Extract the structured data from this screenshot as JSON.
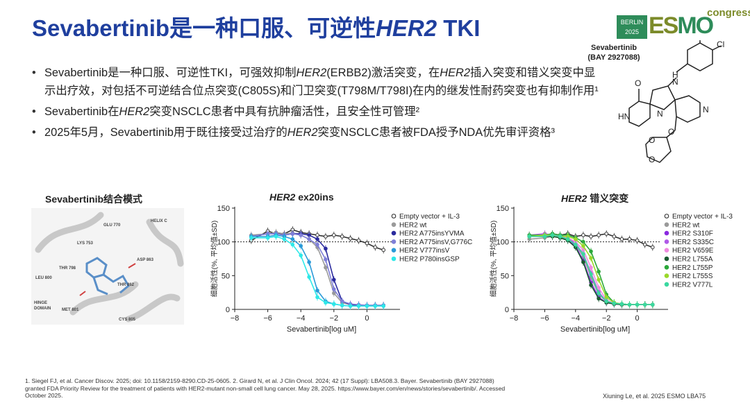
{
  "title": {
    "part1": "Sevabertinib是一种口服、可逆性",
    "her2": "HER2",
    "part2": " TKI"
  },
  "logo": {
    "city": "BERLIN",
    "year": "2025",
    "esmo_e": "ES",
    "esmo_mo": "MO",
    "congress": "congress"
  },
  "molecule": {
    "name": "Sevabertinib",
    "code": "(BAY 2927088)"
  },
  "bullets": [
    {
      "t1": "Sevabertinib是一种口服、可逆性TKI，可强效抑制",
      "i1": "HER2",
      "t2": "(ERBB2)激活突变，在",
      "i2": "HER2",
      "t3": "插入突变和错义突变中显示出疗效，对包括不可逆结合位点突变(C805S)和门卫突变(T798M/T798I)在内的继发性耐药突变也有抑制作用¹"
    },
    {
      "t1": "Sevabertinib在",
      "i1": "HER2",
      "t2": "突变NSCLC患者中具有抗肿瘤活性，且安全性可管理²"
    },
    {
      "t1": "2025年5月，Sevabertinib用于既往接受过治疗的",
      "i1": "HER2",
      "t2": "突变NSCLC患者被FDA授予NDA优先审评资格³"
    }
  ],
  "binding": {
    "title": "Sevabertinib结合模式",
    "labels": [
      "HELIX C",
      "GLU 770",
      "LYS 753",
      "ASP 863",
      "THR 798",
      "LEU 800",
      "THR 862",
      "HINGE",
      "DOMAIN",
      "MET 801",
      "CYS 805"
    ]
  },
  "chart_data": [
    {
      "type": "line",
      "title_italic": "HER2",
      "title_rest": " ex20ins",
      "xlabel": "Sevabertinib[log uM]",
      "ylabel": "细胞活性(%, 平均值±SD)",
      "xlim": [
        -8,
        2
      ],
      "ylim": [
        0,
        150
      ],
      "xticks": [
        -8,
        -6,
        -4,
        -2,
        0
      ],
      "yticks": [
        0,
        50,
        100,
        150
      ],
      "reference_line": 100,
      "legend_position": "right",
      "x": [
        -7,
        -6,
        -5.5,
        -5,
        -4.5,
        -4,
        -3.5,
        -3,
        -2.5,
        -2,
        -1.5,
        -1,
        -0.5,
        0,
        0.5,
        1
      ],
      "series": [
        {
          "name": "Empty vector + IL-3",
          "color": "#333333",
          "marker": "open",
          "values": [
            102,
            116,
            112,
            112,
            118,
            114,
            112,
            110,
            108,
            110,
            108,
            105,
            102,
            98,
            92,
            88
          ]
        },
        {
          "name": "HER2 wt",
          "color": "#9a9a9a",
          "marker": "filled",
          "values": [
            110,
            112,
            114,
            112,
            113,
            110,
            104,
            92,
            62,
            24,
            10,
            7,
            6,
            6,
            6,
            6
          ]
        },
        {
          "name": "HER2 A775insYVMA",
          "color": "#2b2b9e",
          "marker": "filled",
          "values": [
            108,
            112,
            112,
            110,
            112,
            112,
            110,
            104,
            90,
            44,
            12,
            7,
            6,
            6,
            6,
            6
          ]
        },
        {
          "name": "HER2 A775insV,G776C",
          "color": "#7f7fd8",
          "marker": "filled",
          "values": [
            108,
            112,
            112,
            110,
            112,
            110,
            104,
            96,
            74,
            30,
            12,
            8,
            7,
            6,
            6,
            6
          ]
        },
        {
          "name": "HER2 V777insV",
          "color": "#2a9ad8",
          "marker": "filled",
          "values": [
            108,
            108,
            110,
            108,
            104,
            94,
            70,
            28,
            12,
            8,
            6,
            5,
            5,
            5,
            5,
            5
          ]
        },
        {
          "name": "HER2 P780insGSP",
          "color": "#2ee8e8",
          "marker": "filled",
          "values": [
            106,
            106,
            108,
            104,
            96,
            80,
            48,
            18,
            10,
            8,
            6,
            5,
            5,
            5,
            5,
            5
          ]
        }
      ]
    },
    {
      "type": "line",
      "title_italic": "HER2",
      "title_rest": " 错义突变",
      "xlabel": "Sevabertinib[log uM]",
      "ylabel": "细胞活性(%, 平均值±SD)",
      "xlim": [
        -8,
        2
      ],
      "ylim": [
        0,
        150
      ],
      "xticks": [
        -8,
        -6,
        -4,
        -2,
        0
      ],
      "yticks": [
        0,
        50,
        100,
        150
      ],
      "reference_line": 100,
      "legend_position": "right",
      "x": [
        -7,
        -6,
        -5.5,
        -5,
        -4.5,
        -4,
        -3.5,
        -3,
        -2.5,
        -2,
        -1.5,
        -1,
        -0.5,
        0,
        0.5,
        1
      ],
      "series": [
        {
          "name": "Empty vector + IL-3",
          "color": "#333333",
          "marker": "open",
          "values": [
            108,
            110,
            112,
            110,
            112,
            108,
            110,
            108,
            110,
            112,
            108,
            104,
            104,
            102,
            96,
            92
          ]
        },
        {
          "name": "HER2 wt",
          "color": "#9a9a9a",
          "marker": "filled",
          "values": [
            104,
            106,
            108,
            106,
            104,
            96,
            78,
            48,
            22,
            12,
            8,
            7,
            7,
            7,
            7,
            7
          ]
        },
        {
          "name": "HER2 S310F",
          "color": "#8a2ae0",
          "marker": "filled",
          "values": [
            108,
            110,
            110,
            108,
            104,
            94,
            72,
            40,
            18,
            10,
            8,
            7,
            7,
            7,
            7,
            7
          ]
        },
        {
          "name": "HER2 S335C",
          "color": "#b05ae8",
          "marker": "filled",
          "values": [
            110,
            112,
            110,
            110,
            106,
            98,
            82,
            54,
            26,
            12,
            9,
            8,
            7,
            7,
            7,
            7
          ]
        },
        {
          "name": "HER2 V659E",
          "color": "#f08ae0",
          "marker": "filled",
          "values": [
            110,
            110,
            112,
            108,
            106,
            100,
            88,
            62,
            32,
            14,
            9,
            8,
            7,
            7,
            7,
            7
          ]
        },
        {
          "name": "HER2 L755A",
          "color": "#1a5a30",
          "marker": "filled",
          "values": [
            108,
            108,
            108,
            106,
            102,
            92,
            70,
            36,
            16,
            10,
            8,
            7,
            7,
            7,
            7,
            7
          ]
        },
        {
          "name": "HER2 L755P",
          "color": "#2aa83a",
          "marker": "filled",
          "values": [
            110,
            110,
            112,
            110,
            110,
            106,
            100,
            86,
            56,
            22,
            10,
            8,
            7,
            7,
            7,
            7
          ]
        },
        {
          "name": "HER2 L755S",
          "color": "#9ad82a",
          "marker": "filled",
          "values": [
            108,
            110,
            110,
            108,
            108,
            104,
            94,
            76,
            44,
            18,
            10,
            8,
            7,
            7,
            7,
            7
          ]
        },
        {
          "name": "HER2 V777L",
          "color": "#3ad8a0",
          "marker": "filled",
          "values": [
            108,
            108,
            110,
            108,
            104,
            96,
            82,
            52,
            24,
            12,
            9,
            8,
            7,
            7,
            7,
            7
          ]
        }
      ]
    }
  ],
  "footnote": "1. Siegel FJ, et al. Cancer Discov. 2025; doi: 10.1158/2159-8290.CD-25-0605. 2. Girard N, et al. J Clin Oncol. 2024; 42 (17 Suppl): LBA508.3. Bayer. Sevabertinib (BAY 2927088) granted FDA Priority Review for the treatment of patients with HER2-mutant non-small cell lung cancer. May 28, 2025. https://www.bayer.com/en/news/stories/sevabertinib/. Accessed October 2025.",
  "citation": "Xiuning Le, et al. 2025 ESMO LBA75",
  "colors": {
    "title": "#1f3f9e",
    "logo_green": "#2e8c5a",
    "logo_olive": "#7c8b2a"
  }
}
